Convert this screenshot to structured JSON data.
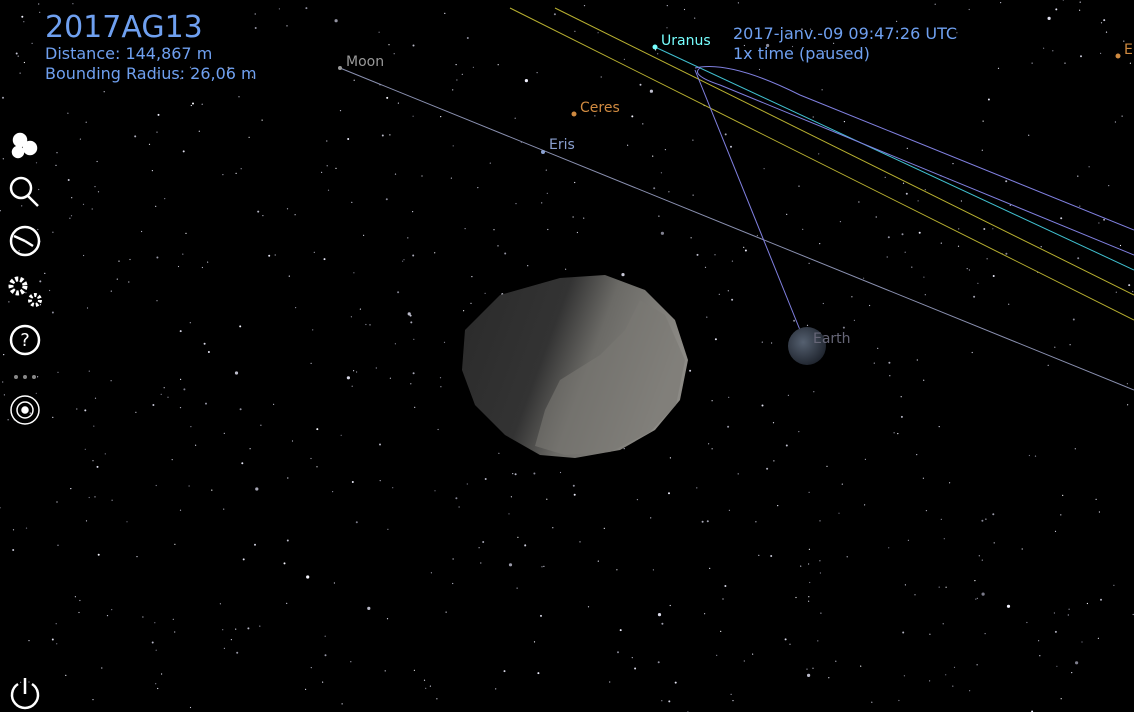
{
  "object": {
    "name": "2017AG13",
    "distance": "Distance: 144,867 m",
    "radius": "Bounding Radius: 26,06 m"
  },
  "time": {
    "date": "2017-janv.-09 09:47:26 UTC",
    "rate": "1x time (paused)"
  },
  "labels": {
    "moon": "Moon",
    "uranus": "Uranus",
    "ceres": "Ceres",
    "eris": "Eris",
    "earth": "Earth",
    "edge": "E"
  }
}
